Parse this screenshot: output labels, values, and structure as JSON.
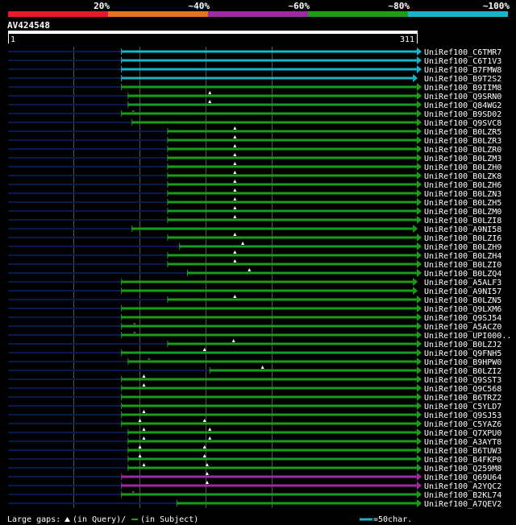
{
  "colors": {
    "background": "#000000",
    "bin_colors": [
      "#e8192c",
      "#e8731d",
      "#9b2b9e",
      "#1a9e1a",
      "#17b5c8"
    ],
    "grid": "#555555",
    "tail": "#0a1a50",
    "text": "#ffffff"
  },
  "identity_scale": {
    "labels": [
      "20%",
      "~40%",
      "~60%",
      "~80%",
      "~100%"
    ]
  },
  "query": {
    "id": "AV424548",
    "start_label": "1",
    "end_label": "311",
    "length": 311
  },
  "legend": {
    "gaps_label": "Large gaps:",
    "in_query": "(in Query)/",
    "in_subject": "(in Subject)",
    "scale_label": "=50char."
  },
  "chart_data": {
    "type": "alignment-overview",
    "x_range": [
      1,
      311
    ],
    "hits": [
      {
        "id": "UniRef100_C6TMR7",
        "bin": 4,
        "start": 87,
        "end": 311,
        "query_gaps": [],
        "subject_gaps": []
      },
      {
        "id": "UniRef100_C6T1V3",
        "bin": 4,
        "start": 87,
        "end": 311,
        "query_gaps": [],
        "subject_gaps": []
      },
      {
        "id": "UniRef100_B7FMW8",
        "bin": 4,
        "start": 87,
        "end": 311,
        "query_gaps": [],
        "subject_gaps": []
      },
      {
        "id": "UniRef100_B9T2S2",
        "bin": 4,
        "start": 87,
        "end": 308,
        "query_gaps": [],
        "subject_gaps": []
      },
      {
        "id": "UniRef100_B9IIM8",
        "bin": 3,
        "start": 87,
        "end": 311,
        "query_gaps": [],
        "subject_gaps": []
      },
      {
        "id": "UniRef100_Q9SRN0",
        "bin": 3,
        "start": 92,
        "end": 311,
        "query_gaps": [
          154
        ],
        "subject_gaps": []
      },
      {
        "id": "UniRef100_Q84WG2",
        "bin": 3,
        "start": 92,
        "end": 311,
        "query_gaps": [
          154
        ],
        "subject_gaps": []
      },
      {
        "id": "UniRef100_B9SD02",
        "bin": 3,
        "start": 87,
        "end": 311,
        "query_gaps": [],
        "subject_gaps": [
          95
        ]
      },
      {
        "id": "UniRef100_Q9SVC8",
        "bin": 3,
        "start": 95,
        "end": 311,
        "query_gaps": [],
        "subject_gaps": []
      },
      {
        "id": "UniRef100_B0LZR5",
        "bin": 3,
        "start": 122,
        "end": 311,
        "query_gaps": [
          173
        ],
        "subject_gaps": []
      },
      {
        "id": "UniRef100_B0LZR3",
        "bin": 3,
        "start": 122,
        "end": 311,
        "query_gaps": [
          173
        ],
        "subject_gaps": []
      },
      {
        "id": "UniRef100_B0LZR0",
        "bin": 3,
        "start": 122,
        "end": 311,
        "query_gaps": [
          173
        ],
        "subject_gaps": []
      },
      {
        "id": "UniRef100_B0LZM3",
        "bin": 3,
        "start": 122,
        "end": 311,
        "query_gaps": [
          173
        ],
        "subject_gaps": []
      },
      {
        "id": "UniRef100_B0LZH0",
        "bin": 3,
        "start": 122,
        "end": 311,
        "query_gaps": [
          173
        ],
        "subject_gaps": []
      },
      {
        "id": "UniRef100_B0LZK8",
        "bin": 3,
        "start": 122,
        "end": 311,
        "query_gaps": [
          173
        ],
        "subject_gaps": []
      },
      {
        "id": "UniRef100_B0LZH6",
        "bin": 3,
        "start": 122,
        "end": 311,
        "query_gaps": [
          173
        ],
        "subject_gaps": []
      },
      {
        "id": "UniRef100_B0LZN3",
        "bin": 3,
        "start": 122,
        "end": 311,
        "query_gaps": [
          173
        ],
        "subject_gaps": []
      },
      {
        "id": "UniRef100_B0LZH5",
        "bin": 3,
        "start": 122,
        "end": 311,
        "query_gaps": [
          173
        ],
        "subject_gaps": []
      },
      {
        "id": "UniRef100_B0LZM0",
        "bin": 3,
        "start": 122,
        "end": 311,
        "query_gaps": [
          173
        ],
        "subject_gaps": []
      },
      {
        "id": "UniRef100_B0LZI8",
        "bin": 3,
        "start": 122,
        "end": 311,
        "query_gaps": [
          173
        ],
        "subject_gaps": []
      },
      {
        "id": "UniRef100_A9NI58",
        "bin": 3,
        "start": 95,
        "end": 308,
        "query_gaps": [],
        "subject_gaps": []
      },
      {
        "id": "UniRef100_B0LZI6",
        "bin": 3,
        "start": 122,
        "end": 311,
        "query_gaps": [
          173
        ],
        "subject_gaps": []
      },
      {
        "id": "UniRef100_B0LZH9",
        "bin": 3,
        "start": 131,
        "end": 311,
        "query_gaps": [
          179
        ],
        "subject_gaps": []
      },
      {
        "id": "UniRef100_B0LZH4",
        "bin": 3,
        "start": 122,
        "end": 311,
        "query_gaps": [
          173
        ],
        "subject_gaps": []
      },
      {
        "id": "UniRef100_B0LZI0",
        "bin": 3,
        "start": 122,
        "end": 311,
        "query_gaps": [
          173
        ],
        "subject_gaps": []
      },
      {
        "id": "UniRef100_B0LZQ4",
        "bin": 3,
        "start": 137,
        "end": 311,
        "query_gaps": [
          184
        ],
        "subject_gaps": []
      },
      {
        "id": "UniRef100_A5ALF3",
        "bin": 3,
        "start": 87,
        "end": 308,
        "query_gaps": [],
        "subject_gaps": []
      },
      {
        "id": "UniRef100_A9NI57",
        "bin": 3,
        "start": 87,
        "end": 308,
        "query_gaps": [],
        "subject_gaps": []
      },
      {
        "id": "UniRef100_B0LZN5",
        "bin": 3,
        "start": 122,
        "end": 311,
        "query_gaps": [
          173
        ],
        "subject_gaps": []
      },
      {
        "id": "UniRef100_Q9LXM6",
        "bin": 3,
        "start": 87,
        "end": 311,
        "query_gaps": [],
        "subject_gaps": []
      },
      {
        "id": "UniRef100_Q9SJ54",
        "bin": 3,
        "start": 87,
        "end": 311,
        "query_gaps": [],
        "subject_gaps": []
      },
      {
        "id": "UniRef100_A5ACZ0",
        "bin": 3,
        "start": 87,
        "end": 311,
        "query_gaps": [],
        "subject_gaps": [
          96
        ]
      },
      {
        "id": "UniRef100_UPI000..",
        "bin": 3,
        "start": 87,
        "end": 311,
        "query_gaps": [],
        "subject_gaps": [
          96
        ]
      },
      {
        "id": "UniRef100_B0LZJ2",
        "bin": 3,
        "start": 122,
        "end": 311,
        "query_gaps": [
          172
        ],
        "subject_gaps": []
      },
      {
        "id": "UniRef100_Q9FNH5",
        "bin": 3,
        "start": 87,
        "end": 311,
        "query_gaps": [
          150
        ],
        "subject_gaps": []
      },
      {
        "id": "UniRef100_B9HPW0",
        "bin": 3,
        "start": 92,
        "end": 311,
        "query_gaps": [],
        "subject_gaps": [
          107
        ]
      },
      {
        "id": "UniRef100_B0LZI2",
        "bin": 3,
        "start": 154,
        "end": 311,
        "query_gaps": [
          194
        ],
        "subject_gaps": []
      },
      {
        "id": "UniRef100_Q9SST3",
        "bin": 3,
        "start": 87,
        "end": 311,
        "query_gaps": [
          104
        ],
        "subject_gaps": []
      },
      {
        "id": "UniRef100_Q9C568",
        "bin": 3,
        "start": 87,
        "end": 311,
        "query_gaps": [
          104
        ],
        "subject_gaps": []
      },
      {
        "id": "UniRef100_B6TRZ2",
        "bin": 3,
        "start": 87,
        "end": 311,
        "query_gaps": [],
        "subject_gaps": []
      },
      {
        "id": "UniRef100_C5YLD7",
        "bin": 3,
        "start": 87,
        "end": 311,
        "query_gaps": [],
        "subject_gaps": []
      },
      {
        "id": "UniRef100_Q9SJ53",
        "bin": 3,
        "start": 87,
        "end": 311,
        "query_gaps": [
          104
        ],
        "subject_gaps": []
      },
      {
        "id": "UniRef100_C5YAZ6",
        "bin": 3,
        "start": 87,
        "end": 311,
        "query_gaps": [
          101,
          150
        ],
        "subject_gaps": []
      },
      {
        "id": "UniRef100_Q7XPU0",
        "bin": 3,
        "start": 92,
        "end": 311,
        "query_gaps": [
          104,
          154
        ],
        "subject_gaps": []
      },
      {
        "id": "UniRef100_A3AYT8",
        "bin": 3,
        "start": 92,
        "end": 311,
        "query_gaps": [
          104,
          154
        ],
        "subject_gaps": []
      },
      {
        "id": "UniRef100_B6TUW3",
        "bin": 3,
        "start": 92,
        "end": 311,
        "query_gaps": [
          101,
          150
        ],
        "subject_gaps": []
      },
      {
        "id": "UniRef100_B4FKP0",
        "bin": 3,
        "start": 92,
        "end": 311,
        "query_gaps": [
          101,
          150
        ],
        "subject_gaps": []
      },
      {
        "id": "UniRef100_Q259M8",
        "bin": 3,
        "start": 92,
        "end": 311,
        "query_gaps": [
          104,
          152
        ],
        "subject_gaps": []
      },
      {
        "id": "UniRef100_Q69U64",
        "bin": 2,
        "start": 87,
        "end": 311,
        "query_gaps": [
          152
        ],
        "subject_gaps": []
      },
      {
        "id": "UniRef100_A2YQC2",
        "bin": 2,
        "start": 87,
        "end": 311,
        "query_gaps": [
          152
        ],
        "subject_gaps": []
      },
      {
        "id": "UniRef100_B2KL74",
        "bin": 3,
        "start": 87,
        "end": 311,
        "query_gaps": [],
        "subject_gaps": [
          95
        ]
      },
      {
        "id": "UniRef100_A7QEV2",
        "bin": 3,
        "start": 129,
        "end": 311,
        "query_gaps": [],
        "subject_gaps": []
      }
    ]
  }
}
